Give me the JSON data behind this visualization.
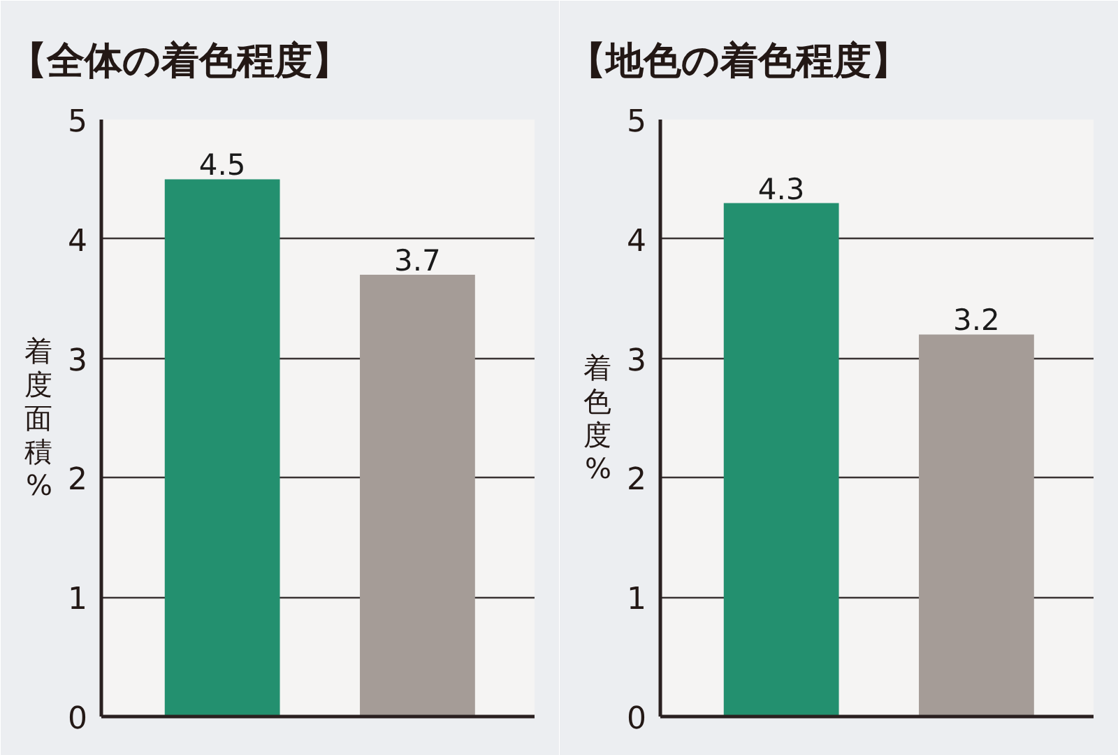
{
  "chart_data": [
    {
      "type": "bar",
      "title": "【全体の着色程度】",
      "ylabel": "着度面積%",
      "categories": [
        null,
        null
      ],
      "values": [
        4.5,
        3.7
      ],
      "colors": [
        "#23906f",
        "#a59c97"
      ],
      "ylim": [
        0,
        5
      ],
      "yticks": [
        0,
        1,
        2,
        3,
        4,
        5
      ],
      "grid": "y",
      "data_labels": true
    },
    {
      "type": "bar",
      "title": "【地色の着色程度】",
      "ylabel": "着色度%",
      "categories": [
        null,
        null
      ],
      "values": [
        4.3,
        3.2
      ],
      "colors": [
        "#23906f",
        "#a59c97"
      ],
      "ylim": [
        0,
        5
      ],
      "yticks": [
        0,
        1,
        2,
        3,
        4,
        5
      ],
      "grid": "y",
      "data_labels": true
    }
  ]
}
